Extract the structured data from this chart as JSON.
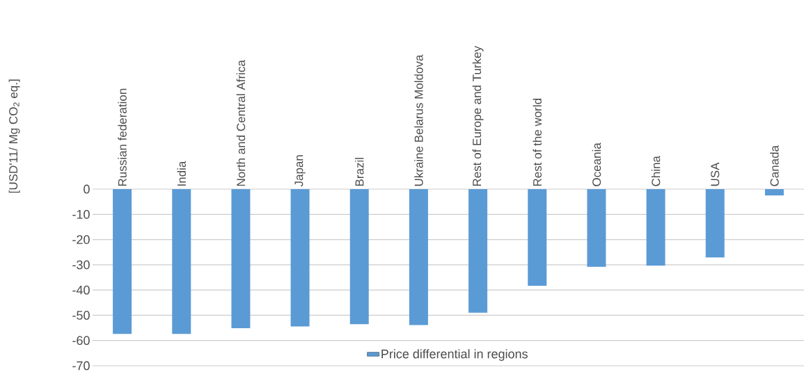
{
  "chart_data": {
    "type": "bar",
    "ylabel": "[USD'11/ Mg CO$_{2}$ eq.]",
    "categories": [
      "Russian federation",
      "India",
      "North and Central Africa",
      "Japan",
      "Brazil",
      "Ukraine Belarus Moldova",
      "Rest of Europe and Turkey",
      "Rest of the world",
      "Oceania",
      "China",
      "USA",
      "Canada"
    ],
    "series": [
      {
        "name": "Price differential in regions",
        "color": "#5b9bd5",
        "values": [
          -57.4,
          -57.4,
          -55.1,
          -54.4,
          -53.5,
          -53.9,
          -49.0,
          -38.3,
          -30.8,
          -30.3,
          -27.1,
          -2.5
        ]
      }
    ],
    "ylim": [
      -70,
      0
    ],
    "yticks": [
      -70,
      -60,
      -50,
      -40,
      -30,
      -20,
      -10,
      0
    ],
    "grid": "y",
    "legend": "bottom"
  }
}
